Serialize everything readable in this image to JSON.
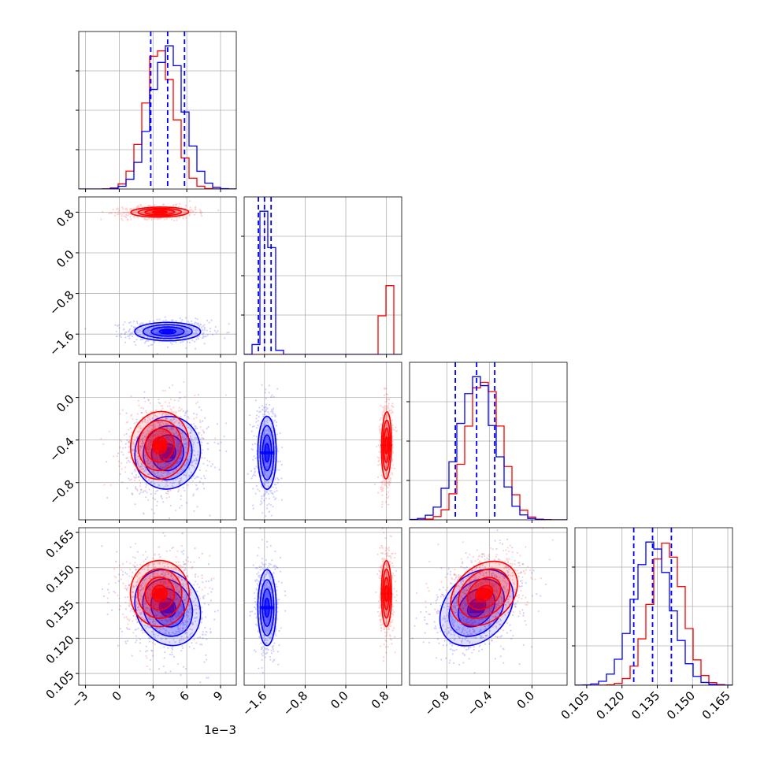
{
  "chart_data": {
    "type": "corner",
    "title": "",
    "grid": true,
    "dimensions": [
      {
        "ticks": [
          -3,
          0,
          3,
          6,
          9
        ],
        "tick_labels": [
          "−3",
          "0",
          "3",
          "6",
          "9"
        ],
        "range": [
          -3.6,
          10.4
        ],
        "offset_label": "1e−3"
      },
      {
        "ticks": [
          -1.6,
          -0.8,
          0.0,
          0.8
        ],
        "tick_labels": [
          "−1.6",
          "−0.8",
          "0.0",
          "0.8"
        ],
        "range": [
          -2.0,
          1.1
        ]
      },
      {
        "ticks": [
          -0.8,
          -0.4,
          0.0
        ],
        "tick_labels": [
          "−0.8",
          "−0.4",
          "0.0"
        ],
        "range": [
          -1.15,
          0.33
        ]
      },
      {
        "ticks": [
          0.105,
          0.12,
          0.135,
          0.15,
          0.165
        ],
        "tick_labels": [
          "0.105",
          "0.120",
          "0.135",
          "0.150",
          "0.165"
        ],
        "range": [
          0.1,
          0.167
        ]
      }
    ],
    "series": [
      {
        "color": "#0000ff",
        "means": [
          4.3,
          -1.55,
          -0.52,
          0.133
        ],
        "stds": [
          1.45,
          0.09,
          0.17,
          0.008
        ],
        "quantiles": [
          [
            2.8,
            4.3,
            5.8
          ],
          [
            -1.72,
            -1.6,
            -1.47
          ],
          [
            -0.72,
            -0.52,
            -0.35
          ],
          [
            0.125,
            0.133,
            0.141
          ]
        ]
      },
      {
        "color": "#ff0000",
        "means": [
          3.6,
          0.8,
          -0.45,
          0.139
        ],
        "stds": [
          1.3,
          0.05,
          0.16,
          0.007
        ],
        "quantiles": null
      }
    ],
    "correlations": [
      {
        "pair": [
          0,
          1
        ],
        "series_0": 0.0,
        "series_1": 0.05
      },
      {
        "pair": [
          0,
          2
        ],
        "series_0": 0.05,
        "series_1": 0.05
      },
      {
        "pair": [
          1,
          2
        ],
        "series_0": 0.0,
        "series_1": 0.1
      },
      {
        "pair": [
          0,
          3
        ],
        "series_0": -0.15,
        "series_1": 0.0
      },
      {
        "pair": [
          1,
          3
        ],
        "series_0": 0.0,
        "series_1": 0.0
      },
      {
        "pair": [
          2,
          3
        ],
        "series_0": 0.3,
        "series_1": 0.3
      }
    ]
  }
}
